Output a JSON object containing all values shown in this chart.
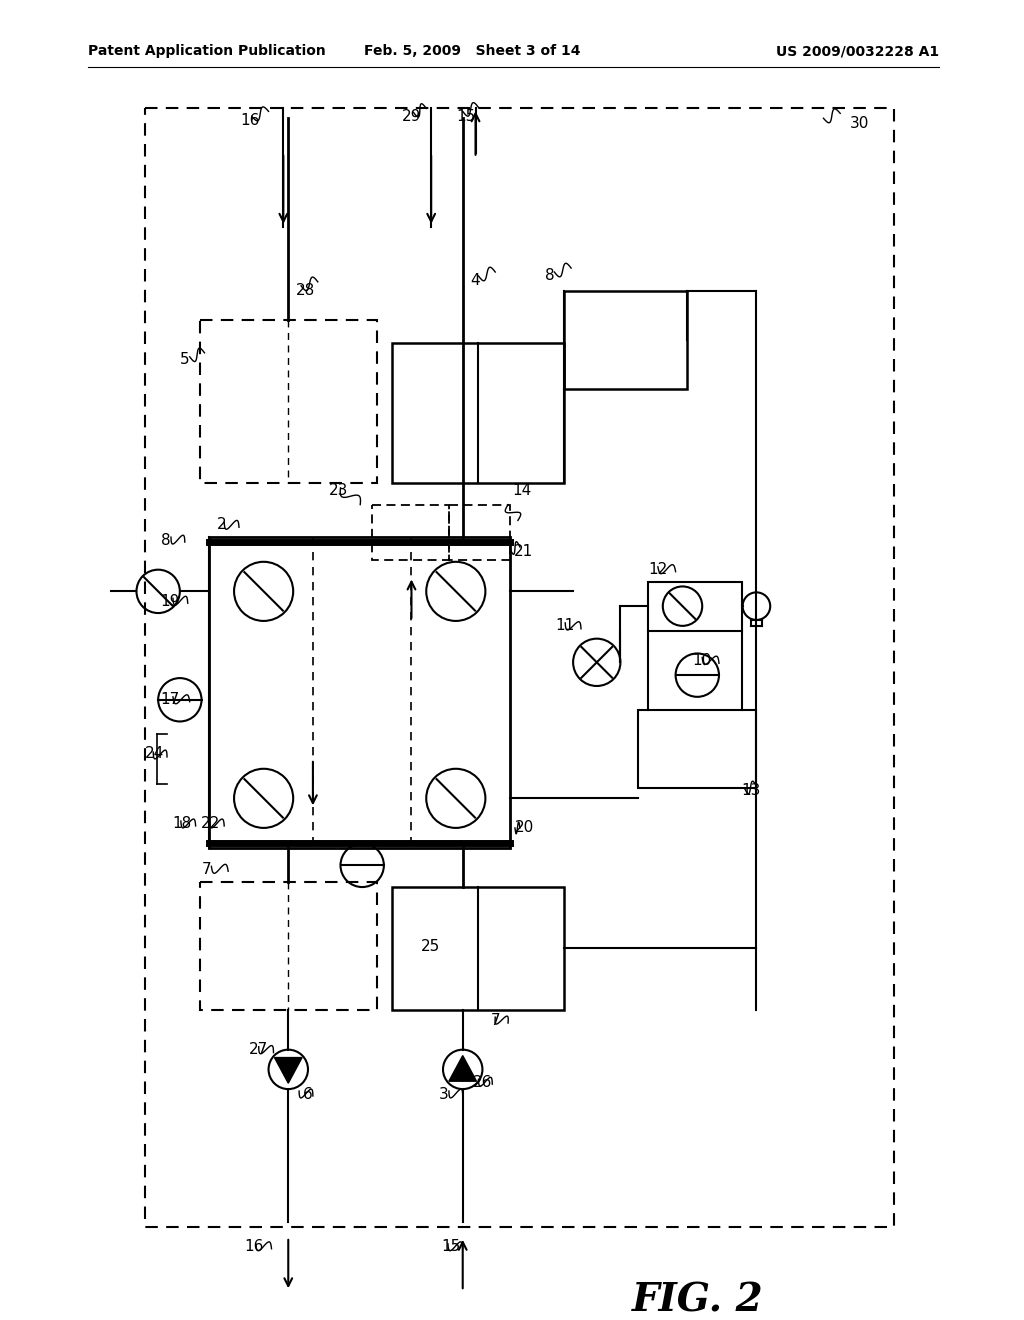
{
  "title_left": "Patent Application Publication",
  "title_center": "Feb. 5, 2009   Sheet 3 of 14",
  "title_right": "US 2009/0032228 A1",
  "fig_label": "FIG. 2",
  "bg_color": "#ffffff"
}
